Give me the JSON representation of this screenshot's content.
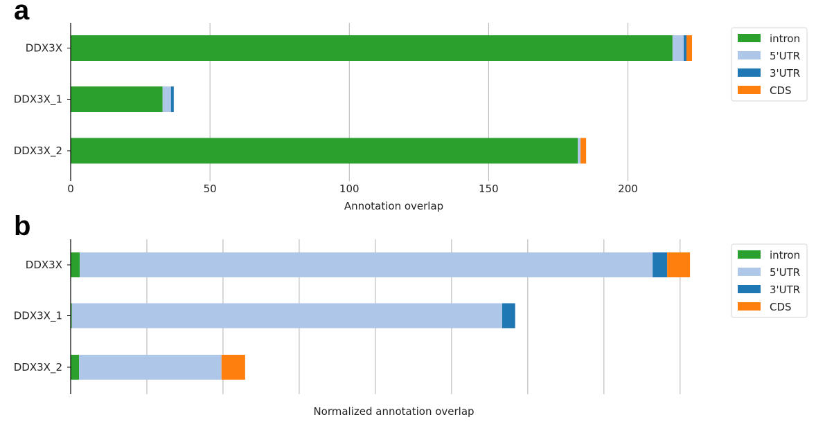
{
  "chart_data": [
    {
      "panel": "a",
      "type": "bar",
      "orientation": "horizontal",
      "stacked": true,
      "categories": [
        "DDX3X",
        "DDX3X_1",
        "DDX3X_2"
      ],
      "series": [
        {
          "name": "intron",
          "color": "#2ca02c",
          "values": [
            216,
            33,
            182
          ]
        },
        {
          "name": "5'UTR",
          "color": "#aec7e8",
          "values": [
            4,
            3,
            1
          ]
        },
        {
          "name": "3'UTR",
          "color": "#1f77b4",
          "values": [
            1,
            1,
            0
          ]
        },
        {
          "name": "CDS",
          "color": "#ff7f0e",
          "values": [
            2,
            0,
            2
          ]
        }
      ],
      "xlabel": "Annotation overlap",
      "xlim": [
        0,
        222
      ],
      "xticks": [
        0,
        50,
        100,
        150,
        200
      ],
      "xtick_labels": [
        "0",
        "50",
        "100",
        "150",
        "200"
      ],
      "grid": "x",
      "legend": "right"
    },
    {
      "panel": "b",
      "type": "bar",
      "orientation": "horizontal",
      "stacked": true,
      "categories": [
        "DDX3X",
        "DDX3X_1",
        "DDX3X_2"
      ],
      "series": [
        {
          "name": "intron",
          "color": "#2ca02c",
          "values": [
            0.012,
            0.0015,
            0.011
          ]
        },
        {
          "name": "5'UTR",
          "color": "#aec7e8",
          "values": [
            0.752,
            0.565,
            0.187
          ]
        },
        {
          "name": "3'UTR",
          "color": "#1f77b4",
          "values": [
            0.019,
            0.017,
            0
          ]
        },
        {
          "name": "CDS",
          "color": "#ff7f0e",
          "values": [
            0.03,
            0,
            0.031
          ]
        }
      ],
      "xlabel": "Normalized annotation overlap",
      "xlim": [
        0,
        0.812
      ],
      "xticks": [
        0,
        0.1,
        0.2,
        0.3,
        0.4,
        0.5,
        0.6,
        0.7,
        0.8
      ],
      "xtick_labels": [],
      "grid": "x",
      "legend": "right"
    }
  ],
  "panels": [
    {
      "letter": "a"
    },
    {
      "letter": "b"
    }
  ],
  "colors": {
    "grid": "#b0b0b0",
    "axis": "#000000"
  }
}
